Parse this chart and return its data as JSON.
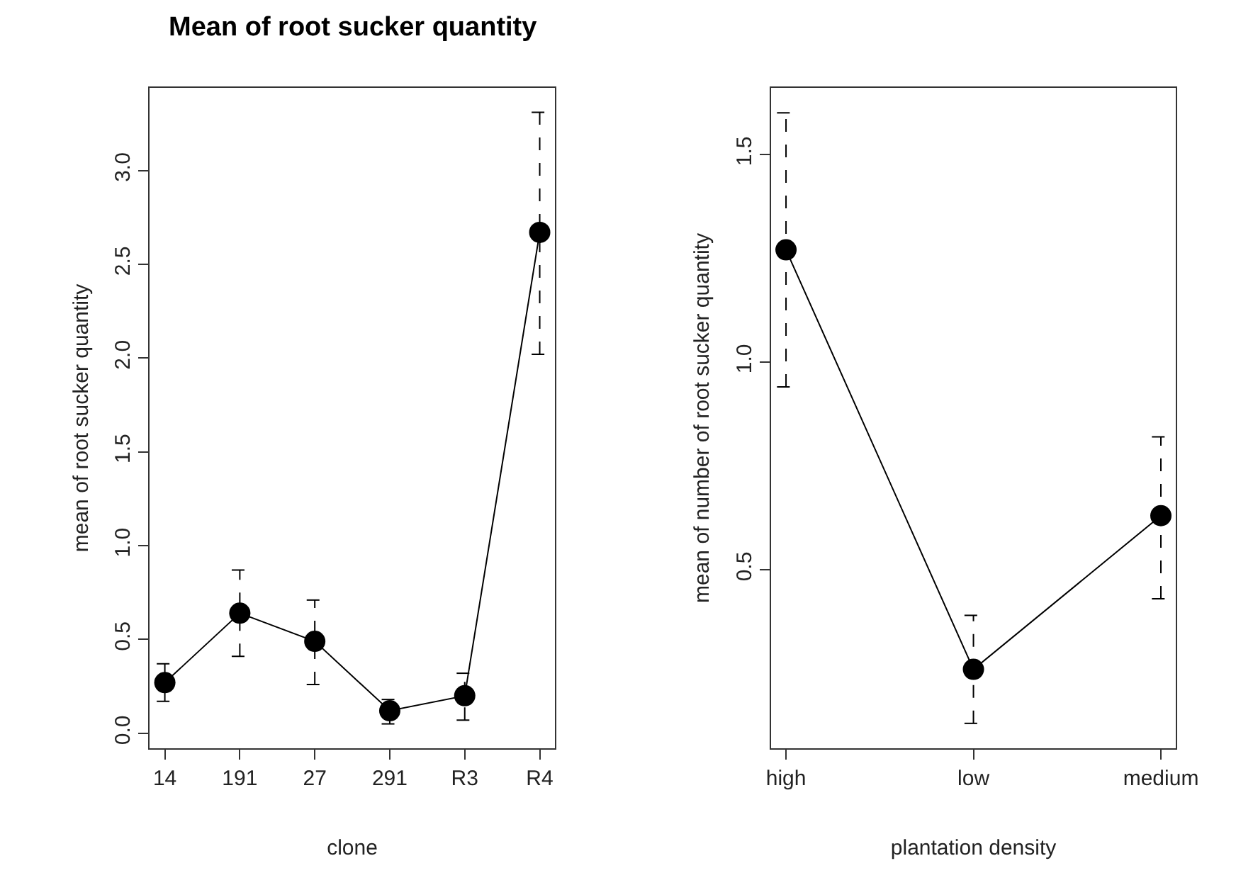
{
  "chart_data": [
    {
      "type": "line",
      "title": "Mean of root sucker quantity",
      "xlabel": "clone",
      "ylabel": "mean of root sucker quantity",
      "categories": [
        "14",
        "191",
        "27",
        "291",
        "R3",
        "R4"
      ],
      "color": "#000000",
      "marker": "circle",
      "line_style": "solid",
      "values": [
        0.27,
        0.64,
        0.49,
        0.12,
        0.2,
        2.67
      ],
      "errors": [
        [
          0.17,
          0.37
        ],
        [
          0.41,
          0.87
        ],
        [
          0.26,
          0.71
        ],
        [
          0.05,
          0.18
        ],
        [
          0.07,
          0.32
        ],
        [
          2.02,
          3.31
        ]
      ],
      "ylim": [
        -0.08,
        3.44
      ],
      "yticks": [
        {
          "value": 0,
          "label": "0.0"
        },
        0.5,
        {
          "value": 1,
          "label": "1.0"
        },
        1.5,
        {
          "value": 2,
          "label": "2.0"
        },
        2.5,
        {
          "value": 3,
          "label": "3.0"
        }
      ]
    },
    {
      "type": "line",
      "xlabel": "plantation density",
      "ylabel": "mean of number of root sucker quantity",
      "categories": [
        "high",
        "low",
        "medium"
      ],
      "color": "#000000",
      "marker": "circle",
      "line_style": "solid",
      "values": [
        1.27,
        0.26,
        0.63
      ],
      "errors": [
        [
          0.94,
          1.6
        ],
        [
          0.13,
          0.39
        ],
        [
          0.43,
          0.82
        ]
      ],
      "ylim": [
        0.07,
        1.66
      ],
      "yticks": [
        0.5,
        {
          "value": 1,
          "label": "1.0"
        },
        1.5
      ]
    }
  ]
}
